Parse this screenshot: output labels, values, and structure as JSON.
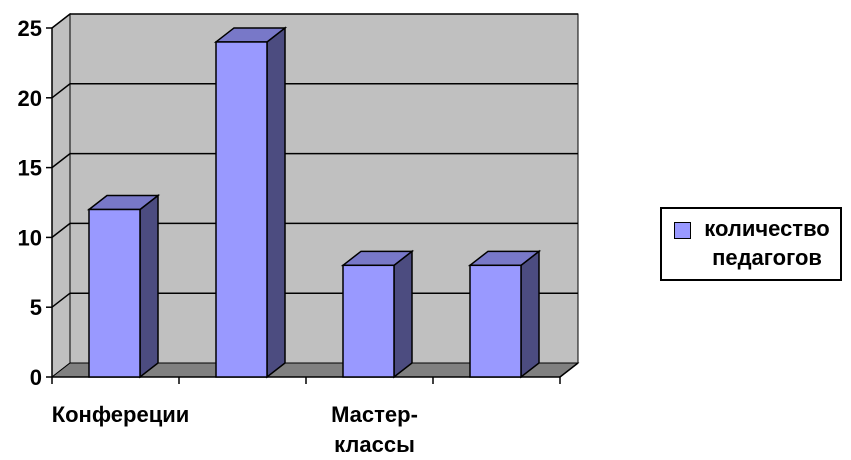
{
  "chart_data": {
    "type": "bar",
    "categories": [
      "Конфереции",
      "",
      "Мастер-\nклассы",
      ""
    ],
    "series": [
      {
        "name": "количество педагогов",
        "values": [
          12,
          24,
          8,
          8
        ]
      }
    ],
    "title": "",
    "xlabel": "",
    "ylabel": "",
    "ylim": [
      0,
      25
    ],
    "yticks": [
      0,
      5,
      10,
      15,
      20,
      25
    ],
    "grid": true,
    "legend": "right",
    "colors": {
      "bar_front": "#9999ff",
      "bar_side": "#4c4c80",
      "bar_top": "#7878c8",
      "wall": "#c0c0c0",
      "floor": "#808080"
    }
  }
}
